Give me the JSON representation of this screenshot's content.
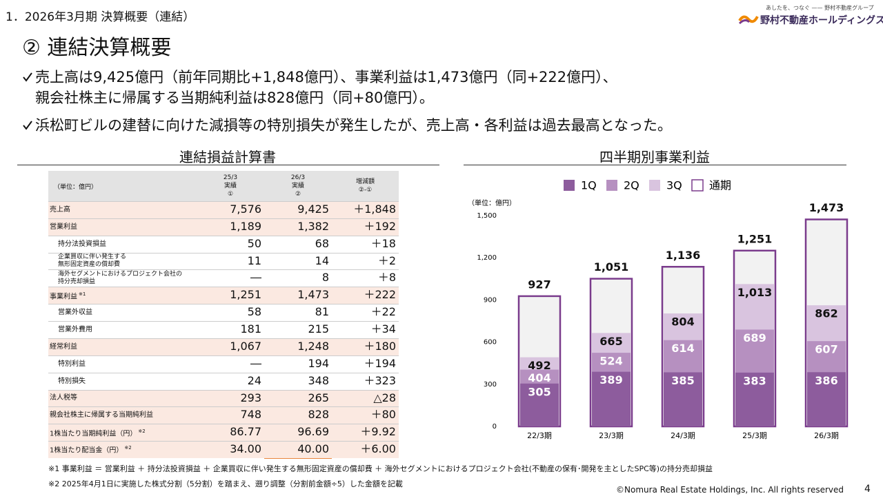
{
  "header": {
    "section": "1．2026年3月期 決算概要（連結）",
    "title": "② 連結決算概要",
    "logo_tagline": "あしたを、つなぐ —— 野村不動産グループ",
    "logo_name": "野村不動産ホールディングス"
  },
  "bullets": [
    {
      "lines": [
        "売上高は9,425億円（前年同期比+1,848億円）、事業利益は1,473億円（同+222億円）、",
        "親会社株主に帰属する当期純利益は828億円（同+80億円）。"
      ]
    },
    {
      "lines": [
        "浜松町ビルの建替に向けた減損等の特別損失が発生したが、売上高・各利益は過去最高となった。"
      ]
    }
  ],
  "table": {
    "title": "連結損益計算書",
    "unit": "（単位：億円）",
    "columns": [
      [
        "25/3",
        "実績",
        "①"
      ],
      [
        "26/3",
        "実績",
        "②"
      ],
      [
        "増減額",
        "②-①"
      ]
    ],
    "rows": [
      {
        "label": [
          "売上高"
        ],
        "values": [
          "7,576",
          "9,425",
          "＋1,848"
        ],
        "highlight": true
      },
      {
        "label": [
          "営業利益"
        ],
        "values": [
          "1,189",
          "1,382",
          "＋192"
        ],
        "highlight": true
      },
      {
        "label": [
          "持分法投資損益"
        ],
        "values": [
          "50",
          "68",
          "＋18"
        ],
        "indent": true
      },
      {
        "label": [
          "企業買収に伴い発生する",
          "無形固定資産の償却費"
        ],
        "values": [
          "11",
          "14",
          "＋2"
        ],
        "indent": true
      },
      {
        "label": [
          "海外セグメントにおけるプロジェクト会社の",
          "持分売却損益"
        ],
        "values": [
          "―",
          "8",
          "＋8"
        ],
        "indent": true
      },
      {
        "label": [
          "事業利益"
        ],
        "note": "※1",
        "values": [
          "1,251",
          "1,473",
          "＋222"
        ],
        "highlight": true
      },
      {
        "label": [
          "営業外収益"
        ],
        "values": [
          "58",
          "81",
          "＋22"
        ],
        "indent": true
      },
      {
        "label": [
          "営業外費用"
        ],
        "values": [
          "181",
          "215",
          "＋34"
        ],
        "indent": true
      },
      {
        "label": [
          "経常利益"
        ],
        "values": [
          "1,067",
          "1,248",
          "＋180"
        ],
        "highlight": true
      },
      {
        "label": [
          "特別利益"
        ],
        "values": [
          "―",
          "194",
          "＋194"
        ],
        "indent": true
      },
      {
        "label": [
          "特別損失"
        ],
        "values": [
          "24",
          "348",
          "＋323"
        ],
        "indent": true
      },
      {
        "label": [
          "法人税等"
        ],
        "values": [
          "293",
          "265",
          "△28"
        ],
        "highlight": true
      },
      {
        "label": [
          "親会社株主に帰属する当期純利益"
        ],
        "values": [
          "748",
          "828",
          "＋80"
        ],
        "highlight": true
      },
      {
        "label": [
          "1株当たり当期純利益（円）"
        ],
        "note": "※2",
        "values": [
          "86.77",
          "96.69",
          "＋9.92"
        ],
        "highlight": true
      },
      {
        "label": [
          "1株当たり配当金（円）"
        ],
        "note": "※2",
        "values": [
          "34.00",
          "40.00",
          "＋6.00"
        ],
        "highlight": true
      }
    ]
  },
  "chart_data": {
    "type": "bar",
    "title": "四半期別事業利益",
    "y_unit": "（単位：億円）",
    "categories": [
      "22/3期",
      "23/3期",
      "24/3期",
      "25/3期",
      "26/3期"
    ],
    "series": [
      {
        "name": "1Q",
        "color": "#8d5c9d",
        "values": [
          305,
          389,
          385,
          383,
          386
        ]
      },
      {
        "name": "2Q",
        "color": "#b690c0",
        "values": [
          404,
          524,
          614,
          689,
          607
        ]
      },
      {
        "name": "3Q",
        "color": "#d9c4df",
        "values": [
          492,
          665,
          804,
          1013,
          862
        ],
        "value_labels": [
          "492",
          "665",
          "804",
          "1,013",
          "862"
        ]
      },
      {
        "name": "通期",
        "color": "#f2f2f2",
        "border_color": "#7a3b8c",
        "values": [
          927,
          1051,
          1136,
          1251,
          1473
        ],
        "value_labels": [
          "927",
          "1,051",
          "1,136",
          "1,251",
          "1,473"
        ]
      }
    ],
    "ylim": [
      0,
      1500
    ],
    "yticks": [
      0,
      300,
      600,
      900,
      {
        "value": 1200,
        "label": "1,200"
      },
      {
        "value": 1500,
        "label": "1,500"
      }
    ]
  },
  "notes": [
    "※1 事業利益 ＝ 営業利益 ＋ 持分法投資損益 ＋ 企業買収に伴い発生する無形固定資産の償却費 ＋ 海外セグメントにおけるプロジェクト会社(不動産の保有･開発を主としたSPC等)の持分売却損益",
    "※2 2025年4月1日に実施した株式分割（5分割）を踏まえ、遡り調整（分割前金額÷5）した金額を記載"
  ],
  "footer": {
    "copyright": "©Nomura Real Estate Holdings, Inc. All rights reserved",
    "page": "4"
  }
}
